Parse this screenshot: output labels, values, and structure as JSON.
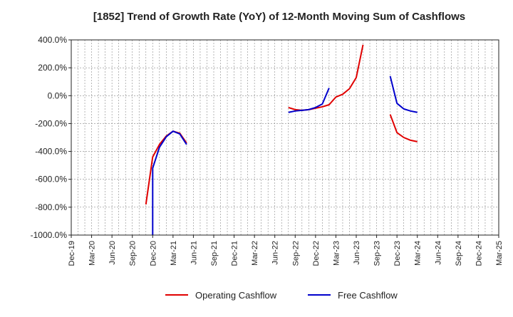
{
  "chart_data": {
    "type": "line",
    "title": "[1852]  Trend of Growth Rate (YoY) of 12-Month Moving Sum of Cashflows",
    "xlabel": "",
    "ylabel": "",
    "ylim": [
      -1000,
      400
    ],
    "y_ticks": [
      400,
      200,
      0,
      -200,
      -400,
      -600,
      -800,
      -1000
    ],
    "y_tick_labels": [
      "400.0%",
      "200.0%",
      "0.0%",
      "-200.0%",
      "-400.0%",
      "-600.0%",
      "-800.0%",
      "-1000.0%"
    ],
    "x_tick_labels": [
      "Dec-19",
      "Mar-20",
      "Jun-20",
      "Sep-20",
      "Dec-20",
      "Mar-21",
      "Jun-21",
      "Sep-21",
      "Dec-21",
      "Mar-22",
      "Jun-22",
      "Sep-22",
      "Dec-22",
      "Mar-23",
      "Jun-23",
      "Sep-23",
      "Dec-23",
      "Mar-24",
      "Jun-24",
      "Sep-24",
      "Dec-24",
      "Mar-25"
    ],
    "grid": true,
    "legend_position": "bottom",
    "series": [
      {
        "name": "Operating Cashflow",
        "color": "#e00000",
        "points": [
          [
            "2020-11",
            -780
          ],
          [
            "2020-12",
            -440
          ],
          [
            "2021-01",
            -350
          ],
          [
            "2021-02",
            -290
          ],
          [
            "2021-03",
            -255
          ],
          [
            "2021-04",
            -270
          ],
          [
            "2021-05",
            -340
          ],
          [
            "2022-08",
            -85
          ],
          [
            "2022-09",
            -100
          ],
          [
            "2022-10",
            -105
          ],
          [
            "2022-11",
            -100
          ],
          [
            "2022-12",
            -90
          ],
          [
            "2023-01",
            -80
          ],
          [
            "2023-02",
            -65
          ],
          [
            "2023-03",
            -10
          ],
          [
            "2023-04",
            10
          ],
          [
            "2023-05",
            50
          ],
          [
            "2023-06",
            130
          ],
          [
            "2023-07",
            365
          ],
          [
            "2023-11",
            -135
          ],
          [
            "2023-12",
            -265
          ],
          [
            "2024-01",
            -300
          ],
          [
            "2024-02",
            -320
          ],
          [
            "2024-03",
            -330
          ]
        ]
      },
      {
        "name": "Free Cashflow",
        "color": "#0000cc",
        "points": [
          [
            "2020-12",
            -1000
          ],
          [
            "2020-12",
            -520
          ],
          [
            "2021-01",
            -370
          ],
          [
            "2021-02",
            -295
          ],
          [
            "2021-03",
            -255
          ],
          [
            "2021-04",
            -275
          ],
          [
            "2021-05",
            -350
          ],
          [
            "2022-08",
            -120
          ],
          [
            "2022-09",
            -110
          ],
          [
            "2022-10",
            -105
          ],
          [
            "2022-11",
            -100
          ],
          [
            "2022-12",
            -85
          ],
          [
            "2023-01",
            -60
          ],
          [
            "2023-02",
            55
          ],
          [
            "2023-11",
            140
          ],
          [
            "2023-12",
            -55
          ],
          [
            "2024-01",
            -95
          ],
          [
            "2024-02",
            -110
          ],
          [
            "2024-03",
            -120
          ]
        ]
      }
    ]
  }
}
